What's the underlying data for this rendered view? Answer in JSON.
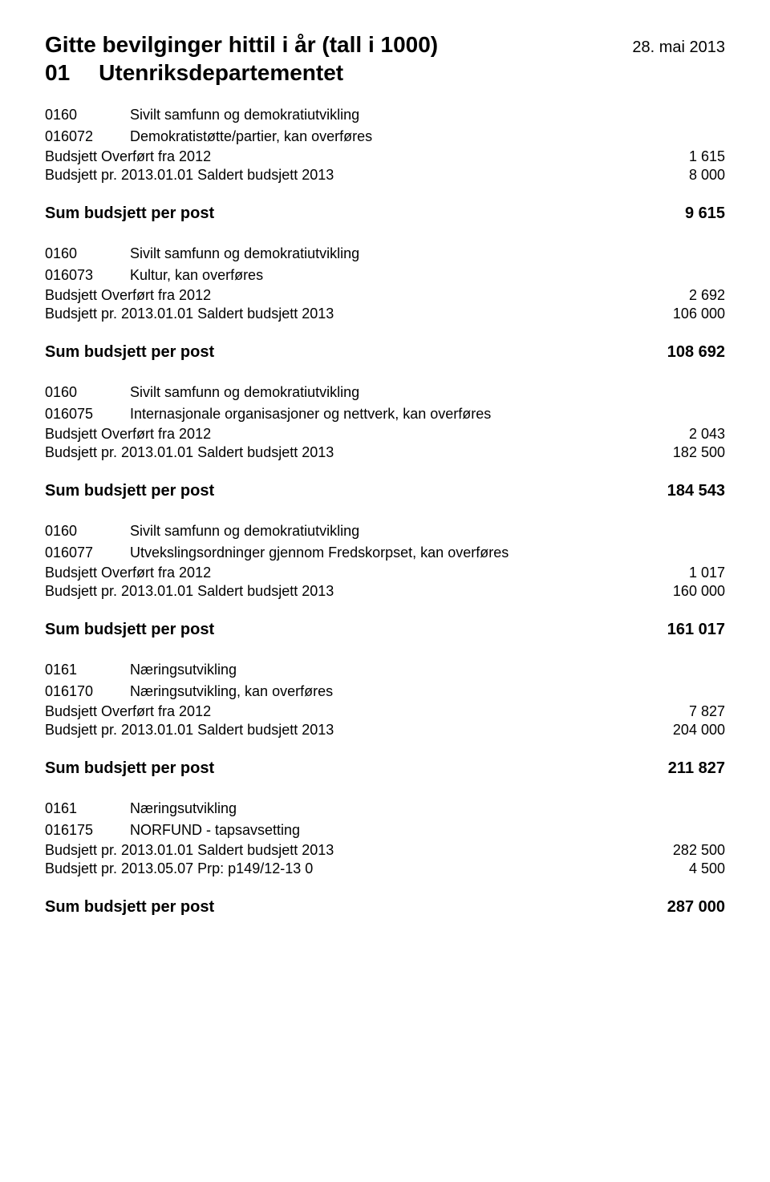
{
  "header": {
    "title": "Gitte bevilginger hittil i år (tall i 1000)",
    "date": "28. mai 2013",
    "dept_code": "01",
    "dept_name": "Utenriksdepartementet"
  },
  "budget_overfort_label": "Budsjett Overført fra 2012",
  "budget_saldert_label": "Budsjett pr. 2013.01.01 Saldert budsjett 2013",
  "budget_prp_label": "Budsjett pr. 2013.05.07 Prp: p149/12-13 0",
  "sum_label": "Sum  budsjett  per post",
  "sections": [
    {
      "top_code": "0160",
      "top_label": "Sivilt samfunn og demokratiutvikling",
      "sub_code": "016072",
      "sub_label": "Demokratistøtte/partier, kan overføres",
      "overfort": "1 615",
      "saldert": "8 000",
      "sum": "9 615"
    },
    {
      "top_code": "0160",
      "top_label": "Sivilt samfunn og demokratiutvikling",
      "sub_code": "016073",
      "sub_label": "Kultur, kan overføres",
      "overfort": "2 692",
      "saldert": "106 000",
      "sum": "108 692"
    },
    {
      "top_code": "0160",
      "top_label": "Sivilt samfunn og demokratiutvikling",
      "sub_code": "016075",
      "sub_label": "Internasjonale organisasjoner og nettverk, kan overføres",
      "overfort": "2 043",
      "saldert": "182 500",
      "sum": "184 543"
    },
    {
      "top_code": "0160",
      "top_label": "Sivilt samfunn og demokratiutvikling",
      "sub_code": "016077",
      "sub_label": "Utvekslingsordninger gjennom Fredskorpset, kan overføres",
      "overfort": "1 017",
      "saldert": "160 000",
      "sum": "161 017"
    },
    {
      "top_code": "0161",
      "top_label": "Næringsutvikling",
      "sub_code": "016170",
      "sub_label": "Næringsutvikling, kan overføres",
      "overfort": "7 827",
      "saldert": "204 000",
      "sum": "211 827"
    },
    {
      "top_code": "0161",
      "top_label": "Næringsutvikling",
      "sub_code": "016175",
      "sub_label": "NORFUND - tapsavsetting",
      "saldert": "282 500",
      "prp": "4 500",
      "sum": "287 000"
    }
  ]
}
